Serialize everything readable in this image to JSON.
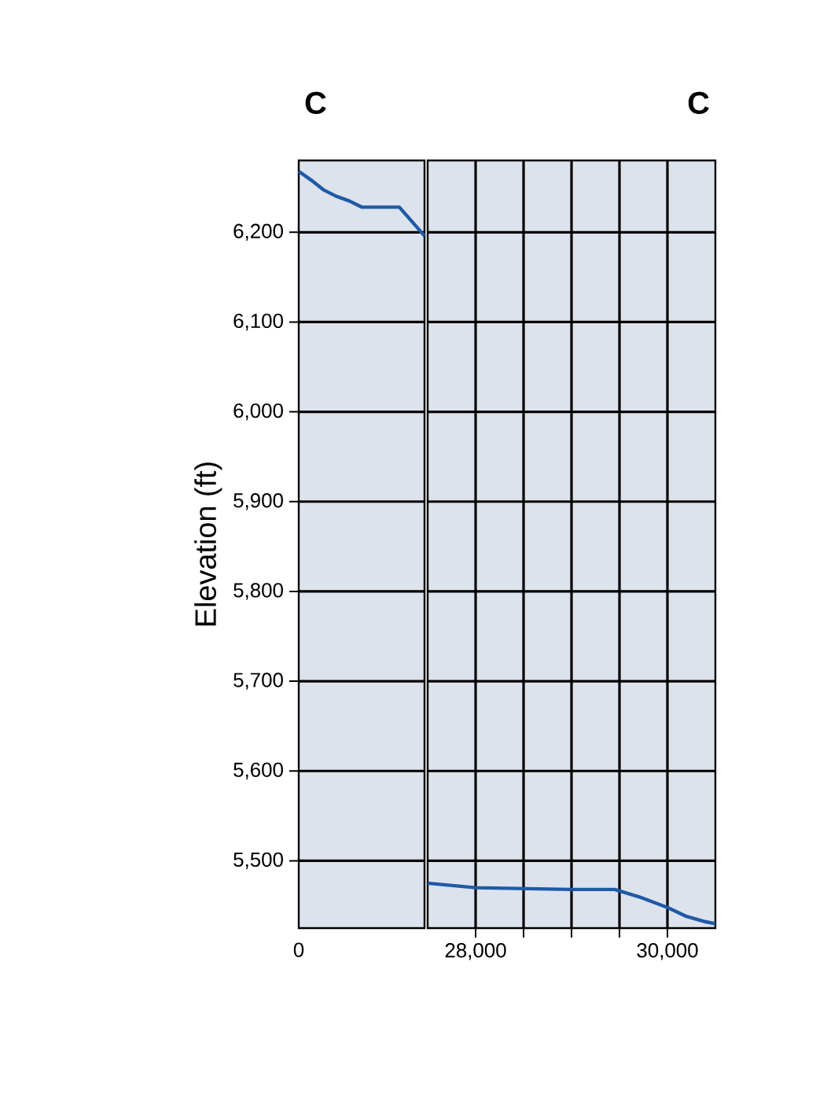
{
  "chart_data": [
    {
      "type": "line",
      "title": "C",
      "ylabel": "Elevation (ft)",
      "color": "#1f5aa6",
      "grid": "y",
      "tick_labels": "y",
      "categories": [
        null,
        null,
        null,
        null,
        null,
        null,
        null,
        null,
        null,
        null,
        null
      ],
      "values": [
        6268,
        6258,
        6247,
        6240,
        6235,
        6228,
        6228,
        6228,
        6228,
        6212,
        6196
      ],
      "annotations": [
        "0"
      ],
      "ylim": [
        5425,
        6280
      ],
      "yticks": [
        {
          "value": 5500,
          "label": "5,500"
        },
        {
          "value": 5600,
          "label": "5,600"
        },
        {
          "value": 5700,
          "label": "5,700"
        },
        {
          "value": 5800,
          "label": "5,800"
        },
        {
          "value": 5900,
          "label": "5,900"
        },
        {
          "value": 6000,
          "label": "6,000"
        },
        {
          "value": 6100,
          "label": "6,100"
        },
        {
          "value": 6200,
          "label": "6,200"
        }
      ]
    },
    {
      "type": "line",
      "title": "C",
      "color": "#1f5aa6",
      "grid": true,
      "tick_labels": "x",
      "x": [
        27500,
        28000,
        29000,
        29450,
        29700,
        30000,
        30200,
        30400,
        30500
      ],
      "values": [
        5475,
        5470,
        5468,
        5468,
        5460,
        5448,
        5438,
        5432,
        5430
      ],
      "xlim": [
        27500,
        30500
      ],
      "xticks": [
        {
          "value": 28000,
          "label": "28,000"
        },
        {
          "value": 28500,
          "label": null
        },
        {
          "value": 29000,
          "label": null
        },
        {
          "value": 29500,
          "label": null
        },
        {
          "value": 30000,
          "label": "30,000"
        }
      ],
      "ylim": [
        5425,
        6280
      ],
      "yticks": [
        5500,
        5600,
        5700,
        5800,
        5900,
        6000,
        6100,
        6200
      ]
    }
  ]
}
